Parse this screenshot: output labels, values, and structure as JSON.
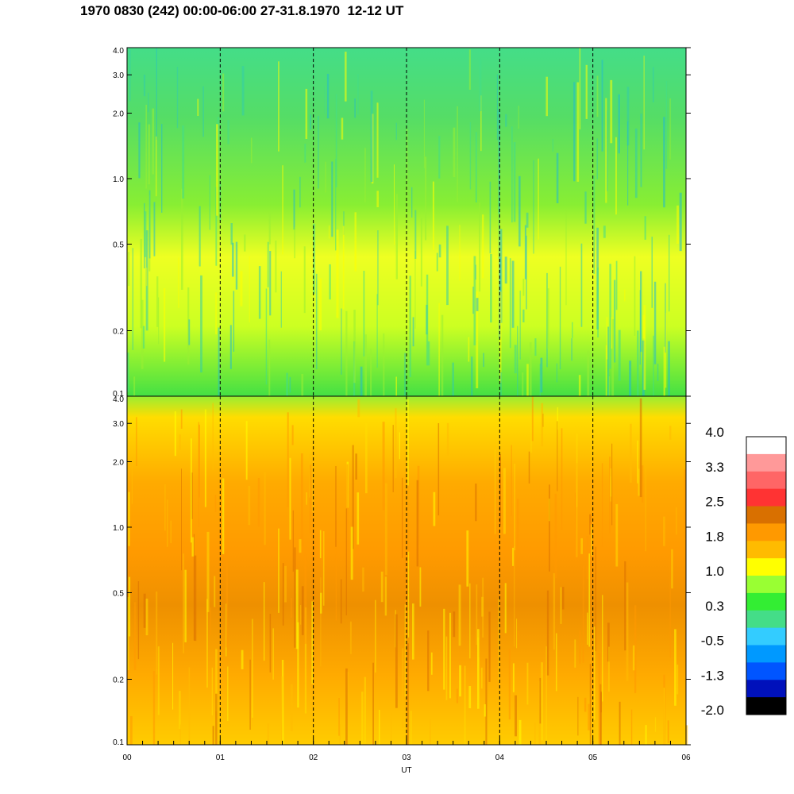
{
  "title": "1970 0830 (242) 00:00-06:00 27-31.8.1970  12-12 UT",
  "chart_data": {
    "type": "heatmap",
    "xlabel": "UT",
    "x_ticks": [
      "00",
      "01",
      "02",
      "03",
      "04",
      "05",
      "06"
    ],
    "xlim": [
      0,
      6
    ],
    "y_scale": "log",
    "panels": [
      {
        "name": "upper",
        "ylim": [
          0.1,
          4.0
        ],
        "y_ticks": [
          "4.0",
          "3.0",
          "2.0",
          "1.0",
          "0.5",
          "0.2",
          "0.1"
        ],
        "y_tick_values": [
          4.0,
          3.0,
          2.0,
          1.0,
          0.5,
          0.2,
          0.1
        ]
      },
      {
        "name": "lower",
        "ylim": [
          0.1,
          4.0
        ],
        "y_ticks": [
          "4.0",
          "3.0",
          "2.0",
          "1.0",
          "0.5",
          "0.2",
          "0.1"
        ],
        "y_tick_values": [
          4.0,
          3.0,
          2.0,
          1.0,
          0.5,
          0.2,
          0.1
        ]
      }
    ],
    "hour_markers": [
      1,
      2,
      3,
      4,
      5
    ],
    "colorbar": {
      "labels": [
        "4.0",
        "3.3",
        "2.5",
        "1.8",
        "1.0",
        "0.3",
        "-0.5",
        "-1.3",
        "-2.0"
      ],
      "colors": [
        "#ffffff",
        "#ff9999",
        "#ff6666",
        "#ff3333",
        "#d97000",
        "#ff9900",
        "#ffbb00",
        "#ffff00",
        "#99ff33",
        "#33ee33",
        "#44dd88",
        "#33ccff",
        "#0099ff",
        "#0055ff",
        "#0011bb",
        "#000000"
      ]
    }
  }
}
